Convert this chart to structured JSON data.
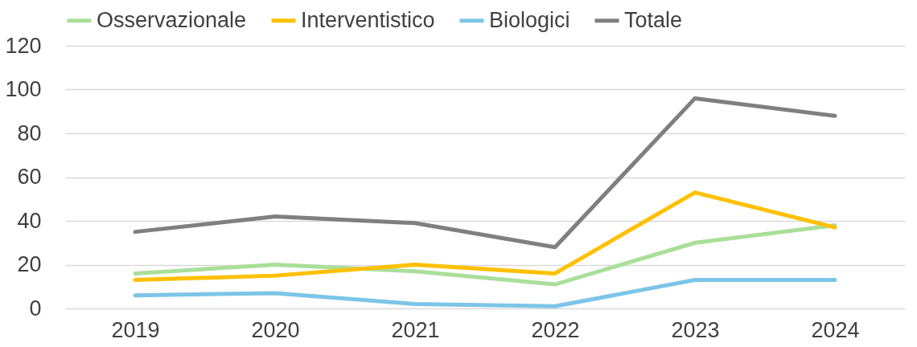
{
  "chart_data": {
    "type": "line",
    "categories": [
      "2019",
      "2020",
      "2021",
      "2022",
      "2023",
      "2024"
    ],
    "series": [
      {
        "name": "Osservazionale",
        "color": "#a9df9a",
        "values": [
          16,
          20,
          17,
          11,
          30,
          38
        ]
      },
      {
        "name": "Interventistico",
        "color": "#ffc000",
        "values": [
          13,
          15,
          20,
          16,
          53,
          37
        ]
      },
      {
        "name": "Biologici",
        "color": "#7cc5e8",
        "values": [
          6,
          7,
          2,
          1,
          13,
          13
        ]
      },
      {
        "name": "Totale",
        "color": "#7f7f7f",
        "values": [
          35,
          42,
          39,
          28,
          96,
          88
        ]
      }
    ],
    "ylim": [
      0,
      120
    ],
    "yticks": [
      0,
      20,
      40,
      60,
      80,
      100,
      120
    ],
    "grid": "y",
    "legend": "top",
    "line_style": "solid"
  }
}
